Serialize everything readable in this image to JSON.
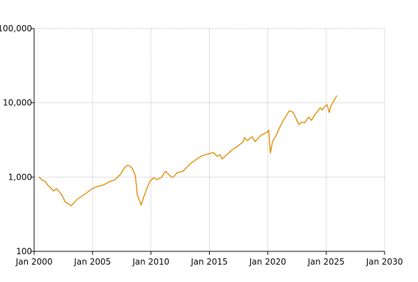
{
  "chart_data": {
    "type": "line",
    "title": "",
    "xlabel": "",
    "ylabel": "",
    "y_scale": "log",
    "ylim": [
      100,
      100000
    ],
    "xlim": [
      "2000-01-01",
      "2030-01-01"
    ],
    "grid": true,
    "legend": "none",
    "colors": {
      "series": "#e08a00",
      "grid": "#bdbdbd",
      "axis": "#000000"
    },
    "x_ticks": [
      {
        "date": "2000-01-01",
        "label": "Jan 2000"
      },
      {
        "date": "2005-01-01",
        "label": "Jan 2005"
      },
      {
        "date": "2010-01-01",
        "label": "Jan 2010"
      },
      {
        "date": "2015-01-01",
        "label": "Jan 2015"
      },
      {
        "date": "2020-01-01",
        "label": "Jan 2020"
      },
      {
        "date": "2025-01-01",
        "label": "Jan 2025"
      },
      {
        "date": "2030-01-01",
        "label": "Jan 2030"
      }
    ],
    "y_ticks": [
      {
        "value": 100,
        "label": "100"
      },
      {
        "value": 1000,
        "label": "1,000"
      },
      {
        "value": 10000,
        "label": "10,000"
      },
      {
        "value": 100000,
        "label": "100,000"
      }
    ],
    "series": [
      {
        "x": [
          "2000-06-01",
          "2000-09-01",
          "2000-12-01",
          "2001-03-01",
          "2001-06-01",
          "2001-09-01",
          "2001-12-01",
          "2002-03-01",
          "2002-06-01",
          "2002-09-01",
          "2002-12-01",
          "2003-03-01",
          "2003-06-01",
          "2003-09-01",
          "2003-12-01",
          "2004-06-01",
          "2004-12-01",
          "2005-06-01",
          "2005-12-01",
          "2006-06-01",
          "2006-12-01",
          "2007-06-01",
          "2007-10-01",
          "2008-01-01",
          "2008-03-01",
          "2008-06-01",
          "2008-09-01",
          "2008-11-01",
          "2009-03-01",
          "2009-06-01",
          "2009-09-01",
          "2009-12-01",
          "2010-04-01",
          "2010-07-01",
          "2010-12-01",
          "2011-04-01",
          "2011-10-01",
          "2011-12-01",
          "2012-04-01",
          "2012-10-01",
          "2013-05-01",
          "2013-12-01",
          "2014-06-01",
          "2014-12-01",
          "2015-05-01",
          "2015-09-01",
          "2015-12-01",
          "2016-02-01",
          "2016-06-01",
          "2016-12-01",
          "2017-06-01",
          "2017-12-01",
          "2018-01-01",
          "2018-04-01",
          "2018-09-01",
          "2018-12-01",
          "2019-06-01",
          "2019-12-01",
          "2020-02-01",
          "2020-03-23",
          "2020-06-01",
          "2020-09-01",
          "2020-12-01",
          "2021-04-01",
          "2021-08-01",
          "2021-11-01",
          "2022-03-01",
          "2022-06-01",
          "2022-09-01",
          "2022-12-01",
          "2023-03-01",
          "2023-07-01",
          "2023-10-01",
          "2024-01-01",
          "2024-03-01",
          "2024-07-01",
          "2024-09-01",
          "2024-12-01",
          "2025-02-01",
          "2025-04-08",
          "2025-06-01",
          "2025-09-01",
          "2025-12-01"
        ],
        "y": [
          1000,
          920,
          880,
          780,
          720,
          650,
          700,
          630,
          560,
          460,
          440,
          410,
          450,
          500,
          530,
          600,
          690,
          750,
          780,
          860,
          920,
          1100,
          1350,
          1450,
          1420,
          1300,
          1050,
          580,
          420,
          560,
          710,
          880,
          980,
          920,
          1000,
          1200,
          1000,
          1000,
          1150,
          1200,
          1500,
          1750,
          1950,
          2050,
          2150,
          1900,
          2000,
          1750,
          1950,
          2300,
          2600,
          3000,
          3400,
          3100,
          3500,
          3000,
          3650,
          4000,
          4300,
          2100,
          3050,
          3500,
          4300,
          5500,
          6700,
          7800,
          7500,
          6200,
          5100,
          5500,
          5400,
          6400,
          5800,
          6800,
          7300,
          8600,
          8000,
          9100,
          9400,
          7400,
          9100,
          10700,
          12500
        ]
      }
    ]
  }
}
